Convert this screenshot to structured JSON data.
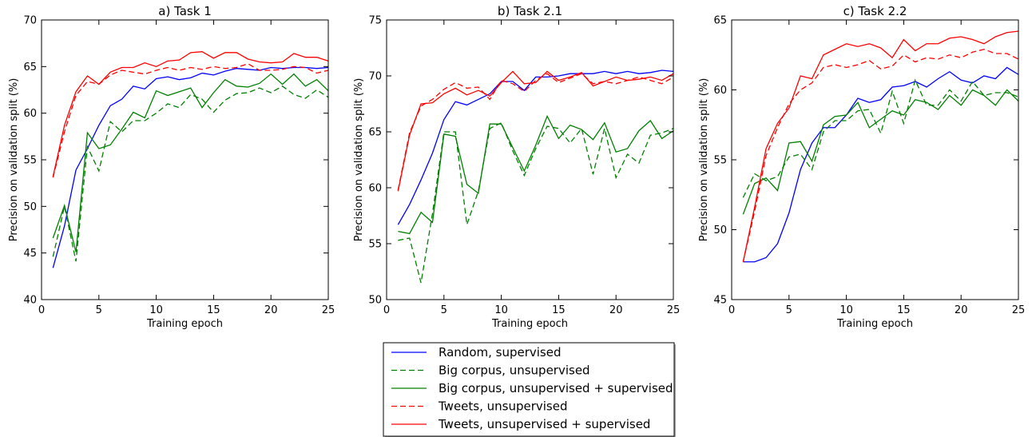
{
  "figure": {
    "legend_placement": "bottom-center",
    "legend": [
      {
        "name": "Random, supervised",
        "color": "#0000ff",
        "dash": "solid"
      },
      {
        "name": "Big corpus, unsupervised",
        "color": "#008000",
        "dash": "dashed"
      },
      {
        "name": "Big corpus, unsupervised + supervised",
        "color": "#008000",
        "dash": "solid"
      },
      {
        "name": "Tweets, unsupervised",
        "color": "#ff0000",
        "dash": "dashed"
      },
      {
        "name": "Tweets, unsupervised + supervised",
        "color": "#ff0000",
        "dash": "solid"
      }
    ]
  },
  "chart_data": [
    {
      "type": "line",
      "title": "a) Task 1",
      "xlabel": "Training epoch",
      "ylabel": "Precision on validation split (%)",
      "xlim": [
        0,
        25
      ],
      "ylim": [
        40,
        70
      ],
      "xticks": [
        0,
        5,
        10,
        15,
        20,
        25
      ],
      "yticks": [
        40,
        45,
        50,
        55,
        60,
        65,
        70
      ],
      "grid": false,
      "x": [
        1,
        2,
        3,
        4,
        5,
        6,
        7,
        8,
        9,
        10,
        11,
        12,
        13,
        14,
        15,
        16,
        17,
        18,
        19,
        20,
        21,
        22,
        23,
        24,
        25
      ],
      "series": [
        {
          "name": "Random, supervised",
          "color": "#0000ff",
          "dash": "solid",
          "values": [
            43.4,
            47.9,
            53.9,
            56.2,
            58.7,
            60.8,
            61.5,
            62.9,
            62.6,
            63.7,
            63.9,
            63.6,
            63.8,
            64.3,
            64.1,
            64.5,
            64.8,
            64.7,
            64.6,
            64.9,
            64.8,
            64.9,
            64.9,
            64.8,
            64.9
          ]
        },
        {
          "name": "Big corpus, unsupervised",
          "color": "#008000",
          "dash": "dashed",
          "values": [
            44.6,
            50.0,
            44.1,
            56.4,
            53.8,
            59.1,
            58.0,
            59.2,
            59.2,
            60.0,
            61.0,
            60.6,
            62.0,
            61.5,
            60.1,
            61.4,
            62.1,
            62.2,
            62.7,
            62.2,
            62.9,
            62.0,
            61.6,
            62.5,
            61.7
          ]
        },
        {
          "name": "Big corpus, unsupervised + supervised",
          "color": "#008000",
          "dash": "solid",
          "values": [
            46.6,
            50.1,
            45.1,
            57.9,
            56.2,
            56.6,
            58.3,
            60.1,
            59.5,
            62.4,
            61.9,
            62.3,
            62.7,
            60.6,
            62.2,
            63.6,
            62.9,
            62.8,
            63.2,
            64.2,
            63.1,
            64.2,
            62.9,
            63.6,
            62.4
          ]
        },
        {
          "name": "Tweets, unsupervised",
          "color": "#ff0000",
          "dash": "dashed",
          "values": [
            53.1,
            58.0,
            61.9,
            63.4,
            63.1,
            64.1,
            64.6,
            64.4,
            64.2,
            64.6,
            64.9,
            64.6,
            64.9,
            64.7,
            65.0,
            64.8,
            64.9,
            65.3,
            64.6,
            64.6,
            64.7,
            65.0,
            64.9,
            64.3,
            64.6
          ]
        },
        {
          "name": "Tweets, unsupervised + supervised",
          "color": "#ff0000",
          "dash": "solid",
          "values": [
            53.2,
            58.7,
            62.3,
            64.0,
            63.1,
            64.4,
            64.9,
            64.9,
            65.4,
            65.0,
            65.6,
            65.7,
            66.5,
            66.6,
            65.9,
            66.5,
            66.5,
            65.8,
            65.5,
            65.4,
            65.5,
            66.4,
            66.0,
            66.0,
            65.6
          ]
        }
      ]
    },
    {
      "type": "line",
      "title": "b) Task 2.1",
      "xlabel": "Training epoch",
      "ylabel": "Precision on validation split (%)",
      "xlim": [
        0,
        25
      ],
      "ylim": [
        50,
        75
      ],
      "xticks": [
        0,
        5,
        10,
        15,
        20,
        25
      ],
      "yticks": [
        50,
        55,
        60,
        65,
        70,
        75
      ],
      "grid": false,
      "x": [
        1,
        2,
        3,
        4,
        5,
        6,
        7,
        8,
        9,
        10,
        11,
        12,
        13,
        14,
        15,
        16,
        17,
        18,
        19,
        20,
        21,
        22,
        23,
        24,
        25
      ],
      "series": [
        {
          "name": "Random, supervised",
          "color": "#0000ff",
          "dash": "solid",
          "values": [
            56.7,
            58.5,
            60.7,
            63.1,
            66.1,
            67.7,
            67.4,
            67.9,
            68.4,
            69.5,
            69.5,
            68.7,
            69.9,
            69.9,
            70.0,
            70.2,
            70.2,
            70.2,
            70.4,
            70.2,
            70.4,
            70.2,
            70.3,
            70.5,
            70.4
          ]
        },
        {
          "name": "Big corpus, unsupervised",
          "color": "#008000",
          "dash": "dashed",
          "values": [
            55.3,
            55.5,
            51.5,
            57.7,
            65.0,
            65.0,
            56.7,
            59.7,
            65.3,
            65.8,
            63.3,
            61.1,
            63.5,
            65.5,
            65.3,
            64.0,
            65.3,
            61.2,
            65.3,
            60.9,
            63.0,
            62.2,
            64.7,
            64.9,
            65.3
          ]
        },
        {
          "name": "Big corpus, unsupervised + supervised",
          "color": "#008000",
          "dash": "solid",
          "values": [
            56.1,
            55.9,
            57.8,
            56.9,
            64.8,
            64.6,
            60.3,
            59.5,
            65.7,
            65.7,
            63.6,
            61.5,
            63.8,
            66.4,
            64.4,
            65.6,
            65.2,
            64.3,
            65.8,
            63.2,
            63.5,
            65.1,
            66.0,
            64.4,
            65.1
          ]
        },
        {
          "name": "Tweets, unsupervised",
          "color": "#ff0000",
          "dash": "dashed",
          "values": [
            59.8,
            64.9,
            67.3,
            67.9,
            68.8,
            69.4,
            68.9,
            69.0,
            67.9,
            69.6,
            69.3,
            68.6,
            69.6,
            70.2,
            69.4,
            69.8,
            70.2,
            69.3,
            69.5,
            69.3,
            69.6,
            69.9,
            69.6,
            69.3,
            69.9
          ]
        },
        {
          "name": "Tweets, unsupervised + supervised",
          "color": "#ff0000",
          "dash": "solid",
          "values": [
            59.7,
            64.7,
            67.5,
            67.6,
            68.4,
            68.9,
            68.3,
            68.7,
            68.2,
            69.4,
            70.4,
            69.3,
            69.4,
            70.4,
            69.6,
            69.9,
            70.3,
            69.1,
            69.5,
            69.9,
            69.6,
            69.7,
            69.9,
            69.6,
            70.2
          ]
        }
      ]
    },
    {
      "type": "line",
      "title": "c) Task 2.2",
      "xlabel": "Training epoch",
      "ylabel": "Precision on validation split (%)",
      "xlim": [
        0,
        25
      ],
      "ylim": [
        45,
        65
      ],
      "xticks": [
        0,
        5,
        10,
        15,
        20,
        25
      ],
      "yticks": [
        45,
        50,
        55,
        60,
        65
      ],
      "grid": false,
      "x": [
        1,
        2,
        3,
        4,
        5,
        6,
        7,
        8,
        9,
        10,
        11,
        12,
        13,
        14,
        15,
        16,
        17,
        18,
        19,
        20,
        21,
        22,
        23,
        24,
        25
      ],
      "series": [
        {
          "name": "Random, supervised",
          "color": "#0000ff",
          "dash": "solid",
          "values": [
            47.7,
            47.7,
            48.0,
            49.0,
            51.2,
            54.3,
            56.2,
            57.3,
            57.3,
            58.2,
            59.4,
            59.1,
            59.3,
            60.2,
            60.3,
            60.6,
            60.2,
            60.8,
            61.3,
            60.7,
            60.5,
            61.0,
            60.8,
            61.6,
            61.1
          ]
        },
        {
          "name": "Big corpus, unsupervised",
          "color": "#008000",
          "dash": "dashed",
          "values": [
            52.3,
            54.0,
            53.5,
            53.8,
            55.2,
            55.4,
            54.3,
            57.0,
            57.8,
            57.8,
            58.5,
            58.6,
            56.9,
            59.9,
            57.6,
            60.7,
            58.9,
            58.9,
            60.0,
            59.2,
            60.6,
            59.6,
            59.8,
            59.8,
            59.5
          ]
        },
        {
          "name": "Big corpus, unsupervised + supervised",
          "color": "#008000",
          "dash": "solid",
          "values": [
            51.1,
            53.3,
            53.7,
            52.8,
            56.2,
            56.3,
            54.9,
            57.5,
            58.1,
            58.2,
            59.1,
            57.3,
            57.9,
            58.5,
            58.2,
            59.3,
            59.1,
            58.6,
            59.6,
            58.9,
            60.0,
            59.6,
            58.9,
            60.0,
            59.2
          ]
        },
        {
          "name": "Tweets, unsupervised",
          "color": "#ff0000",
          "dash": "dashed",
          "values": [
            47.7,
            51.3,
            55.3,
            57.3,
            59.0,
            60.0,
            60.5,
            61.6,
            61.8,
            61.6,
            61.8,
            62.1,
            61.5,
            61.7,
            62.5,
            62.0,
            62.3,
            62.2,
            62.5,
            62.3,
            62.7,
            62.9,
            62.6,
            62.6,
            62.2
          ]
        },
        {
          "name": "Tweets, unsupervised + supervised",
          "color": "#ff0000",
          "dash": "solid",
          "values": [
            47.7,
            51.6,
            55.8,
            57.6,
            58.7,
            61.0,
            60.8,
            62.5,
            62.9,
            63.3,
            63.1,
            63.3,
            63.0,
            62.3,
            63.6,
            62.8,
            63.3,
            63.3,
            63.7,
            63.8,
            63.6,
            63.3,
            63.8,
            64.1,
            64.2
          ]
        }
      ]
    }
  ]
}
